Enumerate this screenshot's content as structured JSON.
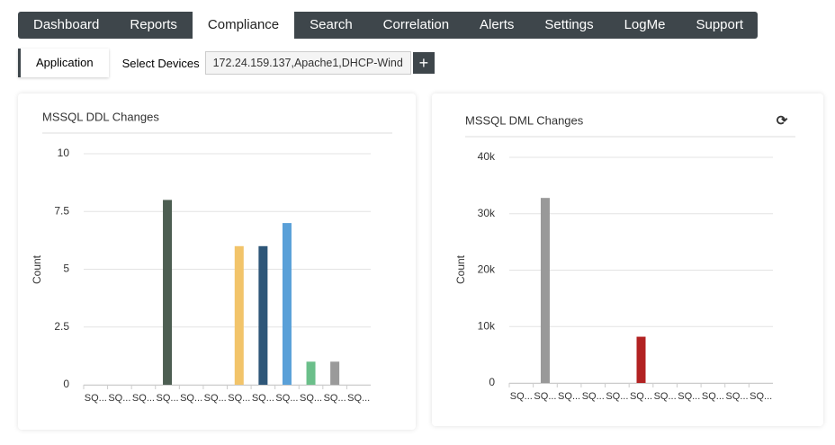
{
  "nav": [
    {
      "label": "Dashboard"
    },
    {
      "label": "Reports"
    },
    {
      "label": "Compliance",
      "active": true
    },
    {
      "label": "Search"
    },
    {
      "label": "Correlation"
    },
    {
      "label": "Alerts"
    },
    {
      "label": "Settings"
    },
    {
      "label": "LogMe"
    },
    {
      "label": "Support"
    }
  ],
  "toolbar": {
    "tab": "Application",
    "select_label": "Select Devices",
    "devices": "172.24.159.137,Apache1,DHCP-Wind"
  },
  "chart_data": [
    {
      "type": "bar",
      "title": "MSSQL DDL Changes",
      "y_label": "Count",
      "categories": [
        "SQ...",
        "SQ...",
        "SQ...",
        "SQ...",
        "SQ...",
        "SQ...",
        "SQ...",
        "SQ...",
        "SQ...",
        "SQ...",
        "SQ...",
        "SQ..."
      ],
      "values": [
        0,
        0,
        0,
        8,
        0,
        0,
        6,
        6,
        7,
        1,
        1,
        0
      ],
      "colors": [
        "#5a6b5e",
        "#5a6b5e",
        "#5a6b5e",
        "#4d5e52",
        "#5a6b5e",
        "#5a6b5e",
        "#f2c46a",
        "#2e5678",
        "#5aa0d8",
        "#6bbf8a",
        "#9a9a9a",
        "#9a9a9a"
      ],
      "ylim": [
        0,
        10
      ],
      "yticks": [
        0,
        2.5,
        5,
        7.5,
        10
      ],
      "grid": true
    },
    {
      "type": "bar",
      "title": "MSSQL DML Changes",
      "y_label": "Count",
      "categories": [
        "SQ...",
        "SQ...",
        "SQ...",
        "SQ...",
        "SQ...",
        "SQ...",
        "SQ...",
        "SQ...",
        "SQ...",
        "SQ...",
        "SQ..."
      ],
      "values": [
        0,
        32800,
        0,
        0,
        0,
        8200,
        0,
        0,
        0,
        0,
        0
      ],
      "colors": [
        "#999999",
        "#999999",
        "#999999",
        "#999999",
        "#999999",
        "#b22222",
        "#999999",
        "#999999",
        "#999999",
        "#999999",
        "#999999"
      ],
      "ylim": [
        0,
        40000
      ],
      "yticks": [
        0,
        {
          "value": 10000,
          "label": "10k"
        },
        {
          "value": 20000,
          "label": "20k"
        },
        {
          "value": 30000,
          "label": "30k"
        },
        {
          "value": 40000,
          "label": "40k"
        }
      ],
      "grid": true
    }
  ]
}
